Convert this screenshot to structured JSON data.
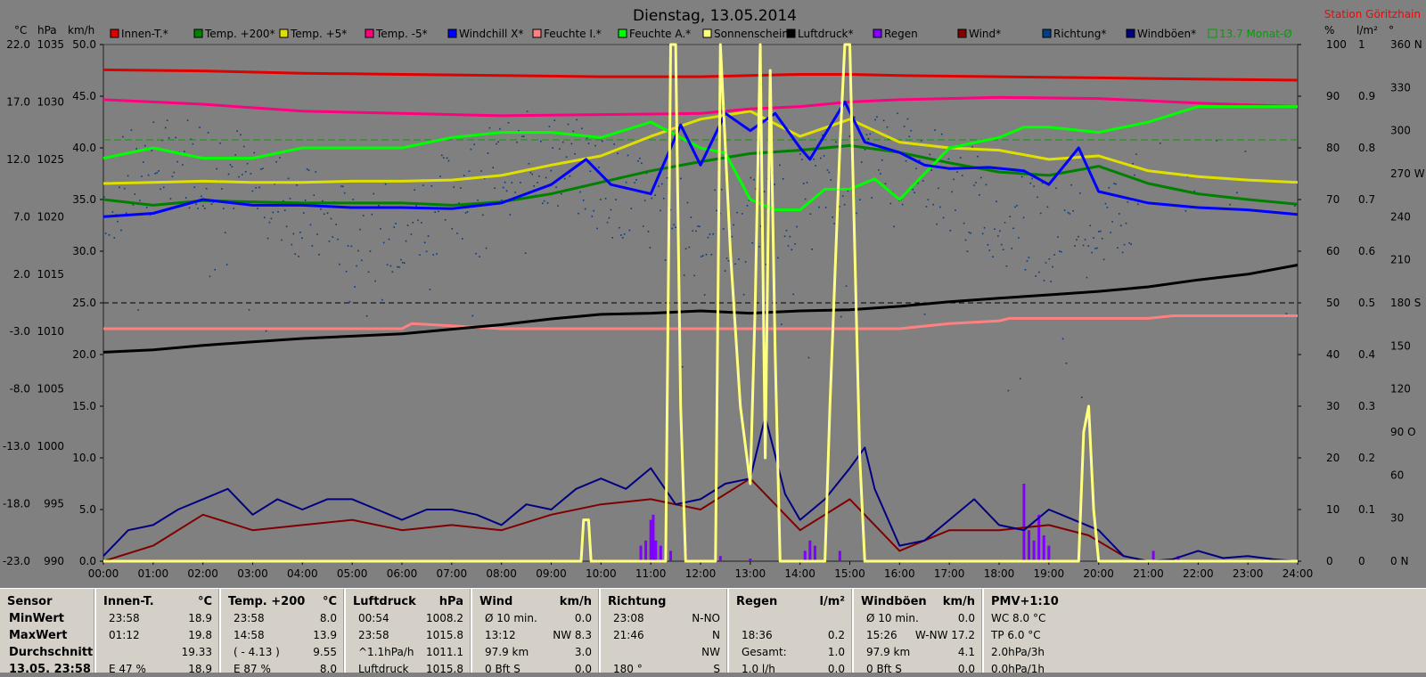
{
  "title": "Dienstag, 13.05.2014",
  "station": "Station Göritzhain",
  "axes": {
    "left_unit_c": "°C",
    "left_unit_hpa": "hPa",
    "left_unit_kmh": "km/h",
    "right_unit_pct": "%",
    "right_unit_lm2": "l/m²",
    "right_unit_deg": "°",
    "temp_ticks": [
      "22.0",
      "17.0",
      "12.0",
      "7.0",
      "2.0",
      "-3.0",
      "-8.0",
      "-13.0",
      "-18.0",
      "-23.0"
    ],
    "hpa_ticks": [
      "1035",
      "1030",
      "1025",
      "1020",
      "1015",
      "1010",
      "1005",
      "1000",
      "995",
      "990"
    ],
    "kmh_ticks": [
      "50.0",
      "45.0",
      "40.0",
      "35.0",
      "30.0",
      "25.0",
      "20.0",
      "15.0",
      "10.0",
      "5.0",
      "0.0"
    ],
    "pct_ticks": [
      "100",
      "90",
      "80",
      "70",
      "60",
      "50",
      "40",
      "30",
      "20",
      "10",
      "0"
    ],
    "lm2_ticks": [
      "1",
      "0.9",
      "0.8",
      "0.7",
      "0.6",
      "0.5",
      "0.4",
      "0.3",
      "0.2",
      "0.1",
      "0"
    ],
    "deg_ticks": [
      "360 N",
      "330",
      "300",
      "270 W",
      "240",
      "210",
      "180 S",
      "150",
      "120",
      "90 O",
      "60",
      "30",
      "0   N"
    ],
    "time_ticks": [
      "00:00",
      "01:00",
      "02:00",
      "03:00",
      "04:00",
      "05:00",
      "06:00",
      "07:00",
      "08:00",
      "09:00",
      "10:00",
      "11:00",
      "12:00",
      "13:00",
      "14:00",
      "15:00",
      "16:00",
      "17:00",
      "18:00",
      "19:00",
      "20:00",
      "21:00",
      "22:00",
      "23:00",
      "24:00"
    ]
  },
  "legend": [
    {
      "label": "Innen-T.*",
      "color": "#e00000"
    },
    {
      "label": "Temp. +200*",
      "color": "#008000"
    },
    {
      "label": "Temp. +5*",
      "color": "#e0e000"
    },
    {
      "label": "Temp. -5*",
      "color": "#ff0080"
    },
    {
      "label": "Windchill X*",
      "color": "#0000ff"
    },
    {
      "label": "Feuchte I.*",
      "color": "#ff8080"
    },
    {
      "label": "Feuchte A.*",
      "color": "#00ff00"
    },
    {
      "label": "Sonnenschein*",
      "color": "#ffff80"
    },
    {
      "label": "Luftdruck*",
      "color": "#000000"
    },
    {
      "label": "Regen",
      "color": "#8000ff"
    },
    {
      "label": "Wind*",
      "color": "#800000"
    },
    {
      "label": "Richtung*",
      "color": "#004080"
    },
    {
      "label": "Windböen*",
      "color": "#000080"
    },
    {
      "label": "13.7 Monat-Ø",
      "color": "#00a000",
      "open_box": true
    }
  ],
  "chart_data": {
    "type": "line",
    "x_unit": "hours",
    "xlim": [
      0,
      24
    ],
    "series": [
      {
        "name": "Innen-T.*",
        "axis": "°C",
        "x": [
          0,
          2,
          4,
          6,
          8,
          10,
          12,
          14,
          15,
          16,
          18,
          20,
          22,
          24
        ],
        "y": [
          19.8,
          19.7,
          19.5,
          19.4,
          19.3,
          19.2,
          19.2,
          19.4,
          19.4,
          19.3,
          19.2,
          19.1,
          19.0,
          18.9
        ]
      },
      {
        "name": "Temp. +200*",
        "axis": "°C",
        "x": [
          0,
          1,
          2,
          3,
          4,
          5,
          6,
          7,
          8,
          9,
          10,
          11,
          12,
          13,
          14,
          15,
          16,
          17,
          18,
          19,
          20,
          21,
          22,
          23,
          24
        ],
        "y": [
          8.5,
          8.0,
          8.4,
          8.3,
          8.2,
          8.2,
          8.2,
          8.0,
          8.3,
          9.0,
          10.0,
          11.0,
          11.8,
          12.5,
          12.8,
          13.2,
          12.6,
          11.7,
          10.9,
          10.6,
          11.4,
          9.9,
          9.0,
          8.5,
          8.1
        ]
      },
      {
        "name": "Temp. +5*",
        "axis": "°C",
        "x": [
          0,
          1,
          2,
          3,
          4,
          5,
          6,
          7,
          8,
          9,
          10,
          11,
          12,
          13,
          14,
          15,
          16,
          17,
          18,
          19,
          20,
          21,
          22,
          23,
          24
        ],
        "y": [
          9.9,
          10.0,
          10.1,
          10.0,
          10.0,
          10.1,
          10.1,
          10.2,
          10.6,
          11.5,
          12.3,
          14.0,
          15.5,
          16.2,
          14.0,
          15.5,
          13.5,
          13.0,
          12.8,
          12.0,
          12.3,
          11.0,
          10.5,
          10.2,
          10.0
        ]
      },
      {
        "name": "Temp. -5*",
        "axis": "°C",
        "x": [
          0,
          2,
          4,
          6,
          8,
          10,
          12,
          13,
          14,
          15,
          16,
          18,
          20,
          22,
          24
        ],
        "y": [
          17.2,
          16.8,
          16.2,
          16.0,
          15.8,
          15.9,
          16.0,
          16.4,
          16.6,
          17.0,
          17.2,
          17.4,
          17.3,
          16.9,
          16.6
        ]
      },
      {
        "name": "Windchill X*",
        "axis": "°C",
        "x": [
          0,
          1,
          2,
          3,
          4,
          5,
          6,
          7,
          8,
          9,
          9.7,
          10.2,
          11,
          11.6,
          12,
          12.5,
          13,
          13.5,
          14,
          14.2,
          14.9,
          15.3,
          16,
          16.5,
          17,
          17.8,
          18.5,
          19,
          19.6,
          20,
          21,
          22,
          23,
          24
        ],
        "y": [
          7.0,
          7.3,
          8.5,
          8.0,
          8.0,
          7.8,
          7.8,
          7.7,
          8.2,
          9.8,
          12.0,
          9.8,
          9.0,
          15.0,
          11.5,
          16.0,
          14.5,
          16.0,
          13.0,
          12.0,
          17.0,
          13.5,
          12.6,
          11.5,
          11.2,
          11.3,
          11.0,
          9.8,
          13.0,
          9.2,
          8.2,
          7.8,
          7.6,
          7.2
        ]
      },
      {
        "name": "Feuchte A.*",
        "axis": "%",
        "x": [
          0,
          1,
          2,
          3,
          4,
          5,
          6,
          7,
          8,
          9,
          10,
          11,
          11.6,
          12,
          12.5,
          13,
          13.5,
          14,
          14.5,
          15,
          15.5,
          16,
          17,
          18,
          18.5,
          19,
          20,
          21,
          22,
          23,
          24
        ],
        "y": [
          78,
          80,
          78,
          78,
          80,
          80,
          80,
          82,
          83,
          83,
          82,
          85,
          82,
          80,
          79,
          70,
          68,
          68,
          72,
          72,
          74,
          70,
          80,
          82,
          84,
          84,
          83,
          85,
          88,
          88,
          88
        ]
      },
      {
        "name": "Feuchte I.*",
        "axis": "%",
        "x": [
          0,
          2,
          6,
          6.2,
          8,
          10,
          12,
          14,
          16,
          17,
          18,
          18.2,
          19,
          20,
          21,
          21.5,
          22,
          24
        ],
        "y": [
          45,
          45,
          45,
          46,
          45,
          45,
          45,
          45,
          45,
          46,
          46.5,
          47,
          47,
          47,
          47,
          47.5,
          47.5,
          47.5
        ]
      },
      {
        "name": "Luftdruck*",
        "axis": "hPa",
        "x": [
          0,
          1,
          2,
          3,
          4,
          5,
          6,
          7,
          8,
          9,
          10,
          11,
          12,
          13,
          14,
          15,
          16,
          17,
          18,
          19,
          20,
          21,
          22,
          23,
          24
        ],
        "y": [
          1008.2,
          1008.4,
          1008.8,
          1009.1,
          1009.4,
          1009.6,
          1009.8,
          1010.2,
          1010.6,
          1011.1,
          1011.5,
          1011.6,
          1011.8,
          1011.6,
          1011.8,
          1011.9,
          1012.2,
          1012.6,
          1012.9,
          1013.2,
          1013.5,
          1013.9,
          1014.5,
          1015.0,
          1015.8
        ]
      },
      {
        "name": "Windböen*",
        "axis": "km/h",
        "x": [
          0,
          0.5,
          1,
          1.5,
          2,
          2.5,
          3,
          3.5,
          4,
          4.5,
          5,
          5.5,
          6,
          6.5,
          7,
          7.5,
          8,
          8.5,
          9,
          9.5,
          10,
          10.5,
          11,
          11.5,
          12,
          12.5,
          13,
          13.3,
          13.7,
          14,
          14.5,
          15,
          15.3,
          15.5,
          16,
          16.5,
          17,
          17.5,
          18,
          18.5,
          19,
          19.5,
          20,
          20.5,
          21,
          21.5,
          22,
          22.5,
          23,
          23.5,
          24
        ],
        "y": [
          0.5,
          3,
          3.5,
          5,
          6,
          7,
          4.5,
          6,
          5,
          6,
          6,
          5,
          4,
          5,
          5,
          4.5,
          3.5,
          5.5,
          5,
          7,
          8,
          7,
          9,
          5.5,
          6,
          7.5,
          8,
          14,
          6.5,
          4,
          6,
          9,
          11,
          7,
          1.5,
          2,
          4,
          6,
          3.5,
          3,
          5,
          4,
          3,
          0.5,
          0,
          0.2,
          1,
          0.3,
          0.5,
          0.2,
          0
        ]
      },
      {
        "name": "Wind*",
        "axis": "km/h",
        "x": [
          0,
          1,
          2,
          3,
          4,
          5,
          6,
          7,
          8,
          9,
          10,
          11,
          12,
          13,
          14,
          15,
          16,
          17,
          18,
          19,
          19.8,
          20.5,
          21,
          22,
          23,
          24
        ],
        "y": [
          0,
          1.5,
          4.5,
          3,
          3.5,
          4,
          3,
          3.5,
          3,
          4.5,
          5.5,
          6,
          5,
          8,
          3,
          6,
          1,
          3,
          3,
          3.5,
          2.5,
          0.5,
          0,
          0,
          0,
          0
        ]
      },
      {
        "name": "Sonnenschein*",
        "axis": "%",
        "x": [
          0,
          9.6,
          9.65,
          9.75,
          9.8,
          10,
          11.3,
          11.4,
          11.5,
          11.6,
          11.7,
          11.8,
          12.3,
          12.4,
          12.6,
          12.8,
          13.0,
          13.1,
          13.2,
          13.3,
          13.4,
          13.5,
          13.6,
          14.5,
          14.6,
          14.8,
          14.9,
          15.0,
          15.1,
          15.2,
          15.3,
          19.6,
          19.7,
          19.8,
          19.9,
          20.0,
          24
        ],
        "y": [
          0,
          0,
          8,
          8,
          0,
          0,
          0,
          100,
          100,
          30,
          0,
          0,
          0,
          100,
          60,
          30,
          15,
          50,
          100,
          20,
          95,
          40,
          0,
          0,
          30,
          80,
          100,
          100,
          60,
          20,
          0,
          0,
          25,
          30,
          10,
          0,
          0
        ]
      },
      {
        "name": "Regen",
        "axis": "l/m²",
        "type": "bar",
        "x": [
          10.8,
          10.9,
          11.0,
          11.05,
          11.1,
          11.2,
          11.4,
          11.7,
          12.4,
          13.0,
          14.1,
          14.2,
          14.3,
          14.8,
          18.5,
          18.6,
          18.7,
          18.8,
          18.9,
          19.0,
          21.1,
          21.6
        ],
        "y": [
          0.03,
          0.04,
          0.08,
          0.09,
          0.04,
          0.03,
          0.02,
          0.02,
          0.01,
          0.005,
          0.02,
          0.04,
          0.03,
          0.02,
          0.15,
          0.06,
          0.04,
          0.09,
          0.05,
          0.03,
          0.02,
          0.01
        ]
      },
      {
        "name": "13.7 Monat-Ø",
        "axis": "°C",
        "x": [
          0,
          24
        ],
        "y": [
          13.7,
          13.7
        ]
      }
    ],
    "scatter_series": {
      "name": "Richtung*",
      "axis": "°"
    },
    "axis_ranges": {
      "°C": [
        -23,
        22
      ],
      "hPa": [
        990,
        1035
      ],
      "km/h": [
        0,
        50
      ],
      "%": [
        0,
        100
      ],
      "l/m²": [
        0,
        1
      ],
      "°": [
        0,
        360
      ]
    }
  },
  "table": {
    "columns": [
      {
        "title": "Sensor",
        "unit": ""
      },
      {
        "title": "Innen-T.",
        "unit": "°C"
      },
      {
        "title": "Temp. +200",
        "unit": "°C"
      },
      {
        "title": "Luftdruck",
        "unit": "hPa"
      },
      {
        "title": "Wind",
        "unit": "km/h"
      },
      {
        "title": "Richtung",
        "unit": ""
      },
      {
        "title": "Regen",
        "unit": "l/m²"
      },
      {
        "title": "Windböen",
        "unit": "km/h"
      },
      {
        "title": "PMV+1:10",
        "unit": ""
      }
    ],
    "row_labels": [
      "MinWert",
      "MaxWert",
      "Durchschnitt",
      "13.05. 23:58"
    ],
    "innen": [
      [
        "23:58",
        "18.9"
      ],
      [
        "01:12",
        "19.8"
      ],
      [
        "",
        "19.33"
      ],
      [
        "E 47 %",
        "18.9"
      ]
    ],
    "temp200": [
      [
        "23:58",
        "8.0"
      ],
      [
        "14:58",
        "13.9"
      ],
      [
        "( - 4.13 )",
        "9.55"
      ],
      [
        "E 87 %",
        "8.0"
      ]
    ],
    "luftdruck": [
      [
        "00:54",
        "1008.2"
      ],
      [
        "23:58",
        "1015.8"
      ],
      [
        "^1.1hPa/h",
        "1011.1"
      ],
      [
        "Luftdruck",
        "1015.8"
      ]
    ],
    "wind": [
      [
        "Ø 10 min.",
        "0.0"
      ],
      [
        "13:12",
        "NW 8.3"
      ],
      [
        "97.9 km",
        "3.0"
      ],
      [
        "0 Bft S",
        "0.0"
      ]
    ],
    "richtung": [
      [
        "23:08",
        "N-NO"
      ],
      [
        "21:46",
        "N"
      ],
      [
        "",
        "NW"
      ],
      [
        "180 °",
        "S"
      ]
    ],
    "regen": [
      [
        "",
        ""
      ],
      [
        "18:36",
        "0.2"
      ],
      [
        "Gesamt:",
        "1.0"
      ],
      [
        "1.0 l/h",
        "0.0"
      ]
    ],
    "windboeen": [
      [
        "Ø 10 min.",
        "0.0"
      ],
      [
        "15:26",
        "W-NW 17.2"
      ],
      [
        "97.9 km",
        "4.1"
      ],
      [
        "0 Bft S",
        "0.0"
      ]
    ],
    "pmv": [
      "WC 8.0 °C",
      "TP 6.0 °C",
      "2.0hPa/3h",
      "0.0hPa/1h"
    ]
  }
}
